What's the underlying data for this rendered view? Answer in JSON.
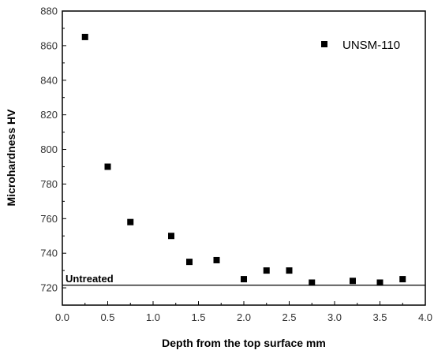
{
  "chart_data": {
    "type": "scatter",
    "xlabel": "Depth from the top surface mm",
    "ylabel": "Microhardness HV",
    "xlim": [
      0.0,
      4.0
    ],
    "ylim": [
      710,
      880
    ],
    "xticks": [
      0.0,
      0.5,
      1.0,
      1.5,
      2.0,
      2.5,
      3.0,
      3.5,
      4.0
    ],
    "xtick_labels": [
      "0.0",
      "0.5",
      "1.0",
      "1.5",
      "2.0",
      "2.5",
      "3.0",
      "3.5",
      "4.0"
    ],
    "yticks": [
      720,
      740,
      760,
      780,
      800,
      820,
      840,
      860,
      880
    ],
    "ytick_labels": [
      "720",
      "740",
      "760",
      "780",
      "800",
      "820",
      "840",
      "860",
      "880"
    ],
    "grid": false,
    "legend_position": "top-right",
    "series": [
      {
        "name": "UNSM-110",
        "marker": "square",
        "color": "#000000",
        "x": [
          0.25,
          0.5,
          0.75,
          1.2,
          1.4,
          1.7,
          2.0,
          2.25,
          2.5,
          2.75,
          3.2,
          3.5,
          3.75
        ],
        "y": [
          865,
          790,
          758,
          750,
          735,
          736,
          725,
          730,
          730,
          723,
          724,
          723,
          725
        ]
      }
    ],
    "reference_line": {
      "label": "Untreated",
      "y": 721.5,
      "color": "#000000"
    }
  }
}
